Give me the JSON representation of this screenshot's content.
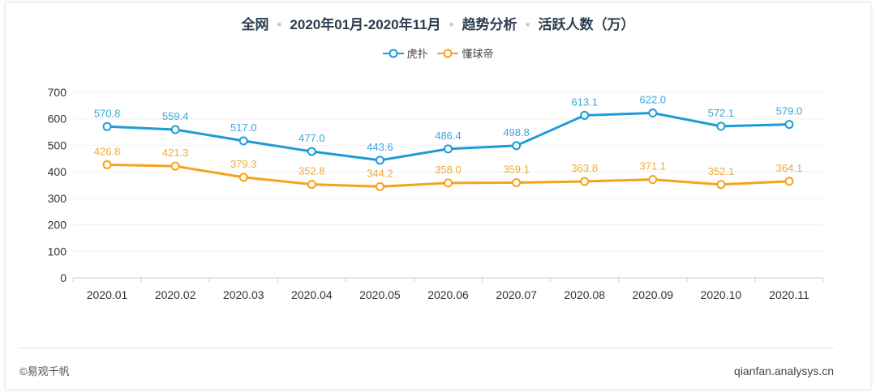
{
  "title": {
    "parts": [
      "全网",
      "2020年01月-2020年11月",
      "趋势分析",
      "活跃人数（万）"
    ]
  },
  "footer": {
    "left": "©易观千帆",
    "right": "qianfan.analysys.cn"
  },
  "chart_data": {
    "type": "line",
    "categories": [
      "2020.01",
      "2020.02",
      "2020.03",
      "2020.04",
      "2020.05",
      "2020.06",
      "2020.07",
      "2020.08",
      "2020.09",
      "2020.10",
      "2020.11"
    ],
    "series": [
      {
        "name": "虎扑",
        "color": "#1e9bd7",
        "labelColor": "#3aa6da",
        "values": [
          570.8,
          559.4,
          517.0,
          477.0,
          443.6,
          486.4,
          498.8,
          613.1,
          622.0,
          572.1,
          579.0
        ]
      },
      {
        "name": "懂球帝",
        "color": "#f5a31a",
        "labelColor": "#eeaa3a",
        "values": [
          426.8,
          421.3,
          379.3,
          352.8,
          344.2,
          358.0,
          359.1,
          363.8,
          371.1,
          352.1,
          364.1
        ]
      }
    ],
    "ylim": [
      0,
      700
    ],
    "yticks": [
      0,
      100,
      200,
      300,
      400,
      500,
      600,
      700
    ],
    "grid": true,
    "legend": "top-center"
  }
}
